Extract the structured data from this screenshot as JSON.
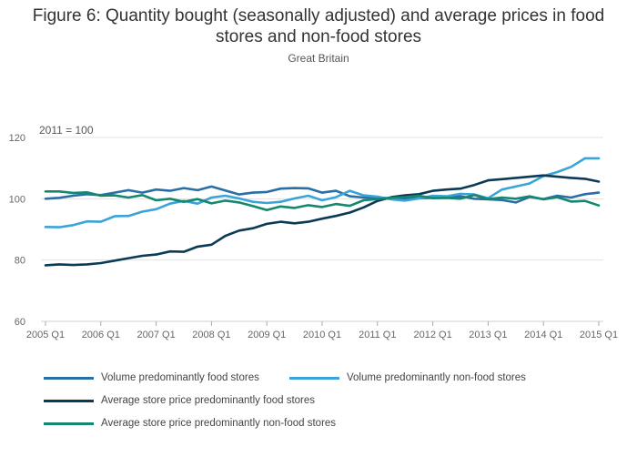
{
  "title_line1": "Figure 6: Quantity bought (seasonally adjusted) and average prices in food",
  "title_line2": "stores and non-food stores",
  "subtitle": "Great Britain",
  "chart_data": {
    "type": "line",
    "annotation": "2011 = 100",
    "ylim": [
      60,
      120
    ],
    "yticks": [
      60,
      80,
      100,
      120
    ],
    "xtick_labels": [
      "2005 Q1",
      "2006 Q1",
      "2007 Q1",
      "2008 Q1",
      "2009 Q1",
      "2010 Q1",
      "2011 Q1",
      "2012 Q1",
      "2013 Q1",
      "2014 Q1",
      "2015 Q1"
    ],
    "x_periods": [
      "2005 Q1",
      "2005 Q2",
      "2005 Q3",
      "2005 Q4",
      "2006 Q1",
      "2006 Q2",
      "2006 Q3",
      "2006 Q4",
      "2007 Q1",
      "2007 Q2",
      "2007 Q3",
      "2007 Q4",
      "2008 Q1",
      "2008 Q2",
      "2008 Q3",
      "2008 Q4",
      "2009 Q1",
      "2009 Q2",
      "2009 Q3",
      "2009 Q4",
      "2010 Q1",
      "2010 Q2",
      "2010 Q3",
      "2010 Q4",
      "2011 Q1",
      "2011 Q2",
      "2011 Q3",
      "2011 Q4",
      "2012 Q1",
      "2012 Q2",
      "2012 Q3",
      "2012 Q4",
      "2013 Q1",
      "2013 Q2",
      "2013 Q3",
      "2013 Q4",
      "2014 Q1",
      "2014 Q2",
      "2014 Q3",
      "2014 Q4",
      "2015 Q1"
    ],
    "grid": true,
    "legend_position": "bottom",
    "series": [
      {
        "name": "Volume predominantly food stores",
        "color": "#2a6ea6",
        "values": [
          100.0,
          100.3,
          101.0,
          101.5,
          101.2,
          102.0,
          102.8,
          102.0,
          103.0,
          102.6,
          103.5,
          102.8,
          104.0,
          102.7,
          101.4,
          102.0,
          102.2,
          103.3,
          103.5,
          103.4,
          102.0,
          102.6,
          100.8,
          100.4,
          100.3,
          100.2,
          100.1,
          100.2,
          100.3,
          100.3,
          100.8,
          100.0,
          99.8,
          99.6,
          98.8,
          100.6,
          99.9,
          101.0,
          100.4,
          101.5,
          102.0
        ]
      },
      {
        "name": "Volume predominantly non-food stores",
        "color": "#3aa4d8",
        "values": [
          90.8,
          90.7,
          91.4,
          92.6,
          92.5,
          94.3,
          94.4,
          95.8,
          96.6,
          98.4,
          99.3,
          98.4,
          100.4,
          101.0,
          100.1,
          99.0,
          98.6,
          99.0,
          100.1,
          101.0,
          99.5,
          100.5,
          102.6,
          101.1,
          100.7,
          99.8,
          99.4,
          100.1,
          101.0,
          100.8,
          101.6,
          101.4,
          100.2,
          103.0,
          104.0,
          105.0,
          107.4,
          108.7,
          110.4,
          113.2,
          113.2
        ]
      },
      {
        "name": "Average store price predominantly food stores",
        "color": "#0b3a57",
        "values": [
          78.3,
          78.6,
          78.4,
          78.6,
          79.0,
          79.8,
          80.6,
          81.4,
          81.8,
          82.8,
          82.7,
          84.4,
          85.0,
          87.9,
          89.6,
          90.4,
          91.8,
          92.5,
          92.0,
          92.5,
          93.5,
          94.4,
          95.5,
          97.2,
          99.3,
          100.5,
          101.1,
          101.5,
          102.6,
          103.0,
          103.3,
          104.5,
          106.0,
          106.4,
          106.8,
          107.2,
          107.6,
          107.2,
          106.8,
          106.5,
          105.6
        ]
      },
      {
        "name": "Average store price predominantly non-food stores",
        "color": "#15876f",
        "values": [
          102.4,
          102.4,
          101.9,
          102.1,
          101.0,
          101.1,
          100.4,
          101.2,
          99.5,
          100.0,
          99.0,
          99.9,
          98.5,
          99.4,
          98.8,
          97.6,
          96.3,
          97.5,
          97.0,
          97.9,
          97.3,
          98.3,
          97.7,
          99.5,
          99.9,
          100.3,
          100.5,
          101.0,
          100.2,
          100.3,
          100.0,
          101.2,
          99.9,
          100.4,
          100.0,
          100.8,
          99.8,
          100.5,
          99.1,
          99.3,
          97.8
        ]
      }
    ]
  }
}
